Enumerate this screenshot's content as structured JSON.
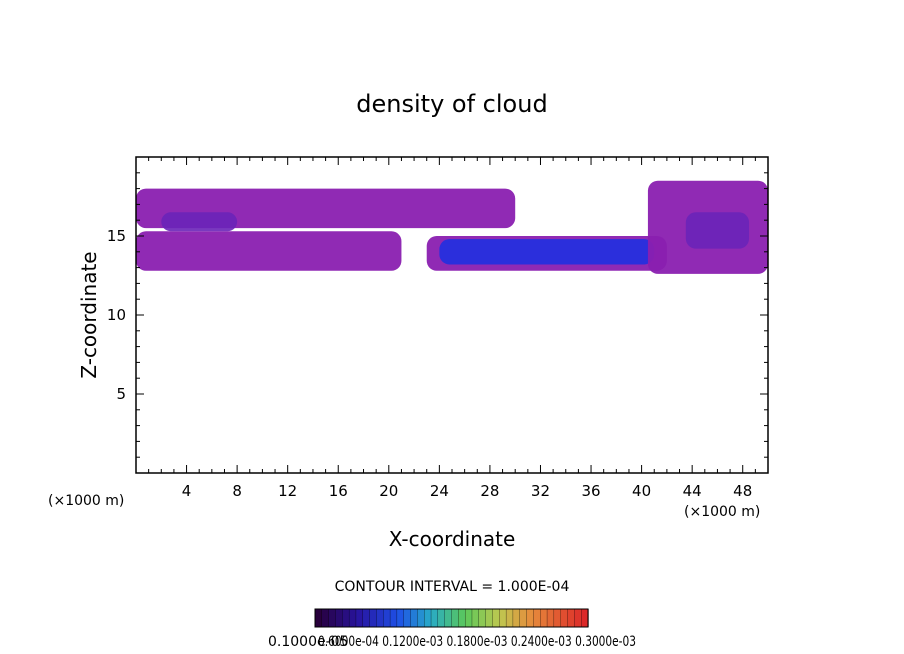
{
  "chart_data": {
    "type": "contour",
    "title": "density of cloud",
    "xlabel": "X-coordinate",
    "ylabel": "Z-coordinate",
    "x_unit_label": "(×1000 m)",
    "y_unit_label": "(×1000 m)",
    "xlim": [
      0,
      50
    ],
    "ylim": [
      0,
      20
    ],
    "x_ticks": [
      4,
      8,
      12,
      16,
      20,
      24,
      28,
      32,
      36,
      40,
      44,
      48
    ],
    "x_tick_labels": [
      "4",
      "8",
      "12",
      "16",
      "20",
      "24",
      "28",
      "32",
      "36",
      "40",
      "44",
      "48"
    ],
    "y_ticks": [
      5,
      10,
      15
    ],
    "y_tick_labels": [
      "5",
      "10",
      "15"
    ],
    "contour_interval_text": "CONTOUR INTERVAL = 1.000E-04",
    "colorbar_labels_text": "0.1000e-05",
    "colorbar_overlap_text": "0.6000e-04 0.1200e-03 0.1800e-03 0.2400e-03 0.3000e-03",
    "cloud_regions": [
      {
        "name": "upper-left layer",
        "x": [
          0,
          30
        ],
        "z": [
          15.5,
          18
        ],
        "level": 1
      },
      {
        "name": "left lower layer",
        "x": [
          0,
          21
        ],
        "z": [
          12.8,
          15.3
        ],
        "level": 1
      },
      {
        "name": "left core",
        "x": [
          2,
          8
        ],
        "z": [
          15.3,
          16.5
        ],
        "level": 2
      },
      {
        "name": "central cloud",
        "x": [
          23,
          42
        ],
        "z": [
          12.8,
          15
        ],
        "level": 1
      },
      {
        "name": "central core",
        "x": [
          24,
          41
        ],
        "z": [
          13.2,
          14.8
        ],
        "level": 3
      },
      {
        "name": "right turret",
        "x": [
          40.5,
          50
        ],
        "z": [
          12.6,
          18.5
        ],
        "level": 1
      },
      {
        "name": "right core",
        "x": [
          43.5,
          48.5
        ],
        "z": [
          14.2,
          16.5
        ],
        "level": 2
      }
    ],
    "colors": {
      "level1": "#8a1fb0",
      "level2": "#6a24b8",
      "level3": "#2030e0",
      "axis": "#000000"
    }
  }
}
